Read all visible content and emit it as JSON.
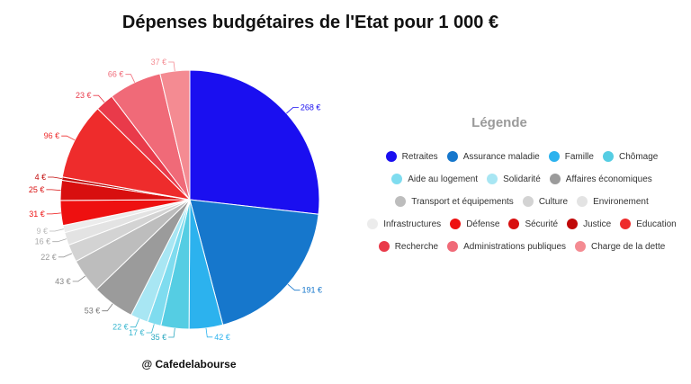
{
  "title": "Dépenses budgétaires de l'Etat pour 1 000 €",
  "credit": "@ Cafedelabourse",
  "legend_title": "Légende",
  "chart_data": {
    "type": "pie",
    "title": "Dépenses budgétaires de l'Etat pour 1 000 €",
    "unit": "€",
    "categories": [
      "Retraites",
      "Assurance maladie",
      "Famille",
      "Chômage",
      "Aide au logement",
      "Solidarité",
      "Affaires économiques",
      "Transport et équipements",
      "Culture",
      "Environement",
      "Infrastructures",
      "Défense",
      "Sécurité",
      "Justice",
      "Education",
      "Recherche",
      "Administrations publiques",
      "Charge de la dette"
    ],
    "values": [
      268,
      191,
      42,
      35,
      17,
      22,
      53,
      43,
      22,
      16,
      9,
      31,
      25,
      4,
      96,
      23,
      66,
      37
    ],
    "labels": [
      "268 €",
      "191 €",
      "42 €",
      "35 €",
      "17 €",
      "22 €",
      "53 €",
      "43 €",
      "22 €",
      "16 €",
      "9 €",
      "31 €",
      "25 €",
      "4 €",
      "96 €",
      "23 €",
      "66 €",
      "37 €"
    ],
    "colors": [
      "#1a0ff0",
      "#1677cc",
      "#2cb2ee",
      "#55cde3",
      "#7fdcef",
      "#a8e6f3",
      "#9b9b9b",
      "#bdbdbd",
      "#d3d3d3",
      "#e3e3e3",
      "#ececec",
      "#ee1010",
      "#d80f0f",
      "#c00808",
      "#ee2c2c",
      "#e93a4a",
      "#f06a78",
      "#f48b92"
    ],
    "label_colors": [
      "#1a0ff0",
      "#1677cc",
      "#2cb2ee",
      "#2aa8c0",
      "#36b6cf",
      "#36b6cf",
      "#777777",
      "#888888",
      "#999999",
      "#aaaaaa",
      "#bbbbbb",
      "#ee1010",
      "#d80f0f",
      "#c00808",
      "#ee2c2c",
      "#e93a4a",
      "#f06a78",
      "#f48b92"
    ],
    "legend_placement": "right"
  }
}
